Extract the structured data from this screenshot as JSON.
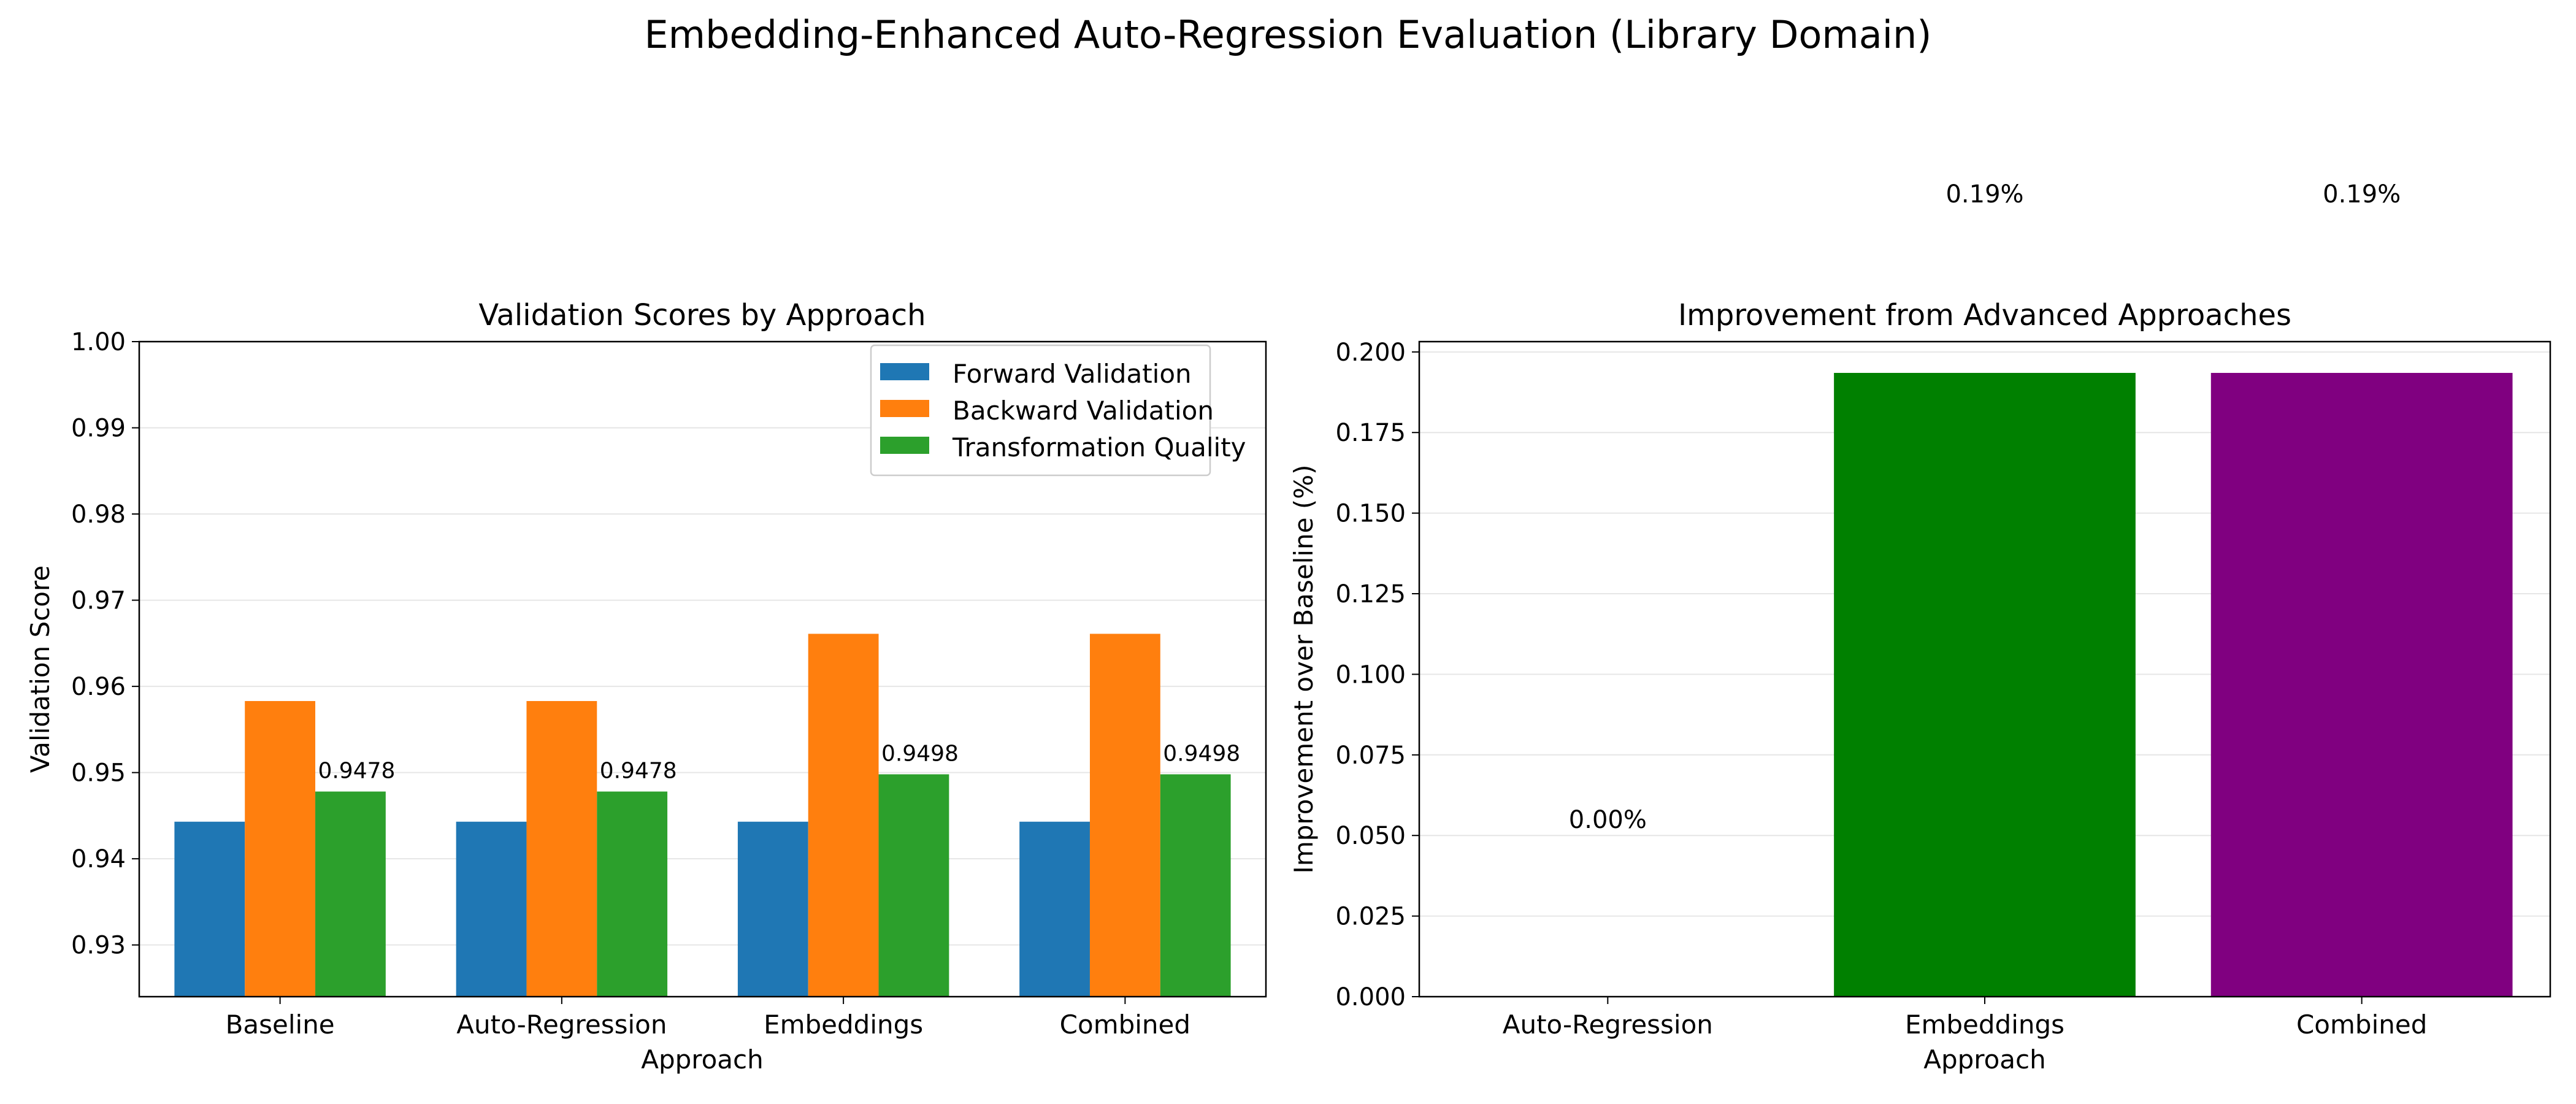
{
  "figure_title": "Embedding-Enhanced Auto-Regression Evaluation (Library Domain)",
  "colors": {
    "forward": "#1f77b4",
    "backward": "#ff7f0e",
    "transform": "#2ca02c",
    "embeddings": "#008000",
    "combined": "#800080",
    "grid": "#e6e6e6"
  },
  "chart_data": [
    {
      "type": "bar",
      "title": "Validation Scores by Approach",
      "xlabel": "Approach",
      "ylabel": "Validation Score",
      "categories": [
        "Baseline",
        "Auto-Regression",
        "Embeddings",
        "Combined"
      ],
      "ylim": [
        0.924,
        1.0
      ],
      "yticks": [
        0.93,
        0.94,
        0.95,
        0.96,
        0.97,
        0.98,
        0.99,
        1.0
      ],
      "ytick_labels": [
        "0.93",
        "0.94",
        "0.95",
        "0.96",
        "0.97",
        "0.98",
        "0.99",
        "1.00"
      ],
      "grid": "y",
      "legend": "top-right",
      "series": [
        {
          "name": "Forward Validation",
          "values": [
            0.9443,
            0.9443,
            0.9443,
            0.9443
          ]
        },
        {
          "name": "Backward Validation",
          "values": [
            0.9583,
            0.9583,
            0.9661,
            0.9661
          ]
        },
        {
          "name": "Transformation Quality",
          "values": [
            0.9478,
            0.9478,
            0.9498,
            0.9498
          ]
        }
      ],
      "value_labels": [
        "0.9478",
        "0.9478",
        "0.9498",
        "0.9498"
      ]
    },
    {
      "type": "bar",
      "title": "Improvement from Advanced Approaches",
      "xlabel": "Approach",
      "ylabel": "Improvement over Baseline (%)",
      "categories": [
        "Auto-Regression",
        "Embeddings",
        "Combined"
      ],
      "values": [
        0.0,
        0.1935,
        0.1935
      ],
      "ylim": [
        0.0,
        0.2032
      ],
      "yticks": [
        0.0,
        0.025,
        0.05,
        0.075,
        0.1,
        0.125,
        0.15,
        0.175,
        0.2
      ],
      "ytick_labels": [
        "0.000",
        "0.025",
        "0.050",
        "0.075",
        "0.100",
        "0.125",
        "0.150",
        "0.175",
        "0.200"
      ],
      "grid": "y",
      "value_labels": [
        "0.00%",
        "0.19%",
        "0.19%"
      ]
    }
  ]
}
